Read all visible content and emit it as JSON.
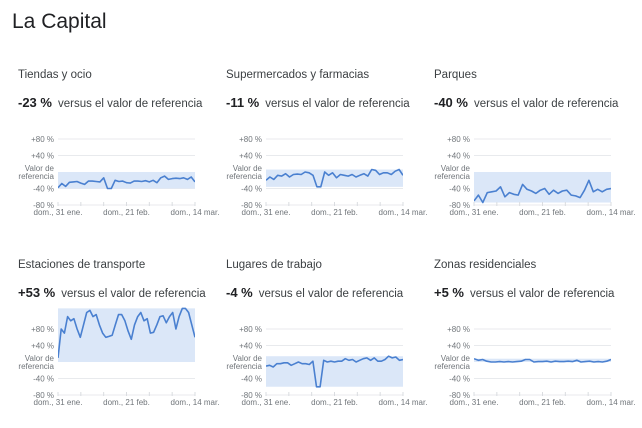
{
  "page": {
    "title": "La Capital"
  },
  "common": {
    "versus_label": "versus el valor de referencia",
    "y_ticks": [
      "+80 %",
      "+40 %",
      "Valor de",
      "referencia",
      "-40 %",
      "-80 %"
    ],
    "x_ticks": [
      "dom., 31 ene.",
      "dom., 21 feb.",
      "dom., 14 mar."
    ],
    "colors": {
      "line": "#4a80d0",
      "fill": "#dbe7f8",
      "grid": "#e8eaed",
      "text": "#70757a"
    }
  },
  "cards": [
    {
      "category": "Tiendas y ocio",
      "pct": "-23 %"
    },
    {
      "category": "Supermercados y farmacias",
      "pct": "-11 %"
    },
    {
      "category": "Parques",
      "pct": "-40 %"
    },
    {
      "category": "Estaciones de transporte",
      "pct": "+53 %"
    },
    {
      "category": "Lugares de trabajo",
      "pct": "-4 %"
    },
    {
      "category": "Zonas residenciales",
      "pct": "+5 %"
    }
  ],
  "chart_data": [
    {
      "type": "area",
      "title": "Tiendas y ocio",
      "subtitle": "-23 % versus el valor de referencia",
      "x_ticks": [
        "dom., 31 ene.",
        "dom., 21 feb.",
        "dom., 14 mar."
      ],
      "ylim": [
        -80,
        80
      ],
      "y_ticks": [
        "+80 %",
        "+40 %",
        "Valor de referencia",
        "-40 %",
        "-80 %"
      ],
      "values": [
        -38,
        -28,
        -35,
        -25,
        -24,
        -23,
        -27,
        -30,
        -22,
        -22,
        -23,
        -24,
        -14,
        -40,
        -40,
        -20,
        -23,
        -22,
        -26,
        -27,
        -22,
        -22,
        -23,
        -21,
        -24,
        -20,
        -26,
        -14,
        -10,
        -18,
        -16,
        -15,
        -16,
        -14,
        -18,
        -12,
        -24
      ]
    },
    {
      "type": "area",
      "title": "Supermercados y farmacias",
      "subtitle": "-11 % versus el valor de referencia",
      "x_ticks": [
        "dom., 31 ene.",
        "dom., 21 feb.",
        "dom., 14 mar."
      ],
      "ylim": [
        -80,
        80
      ],
      "y_ticks": [
        "+80 %",
        "+40 %",
        "Valor de referencia",
        "-40 %",
        "-80 %"
      ],
      "values": [
        -20,
        -12,
        -18,
        -8,
        -10,
        -4,
        -12,
        -6,
        -5,
        -6,
        0,
        -2,
        -8,
        -36,
        -36,
        0,
        -8,
        -2,
        -14,
        -6,
        -8,
        -10,
        -6,
        -12,
        -8,
        -4,
        -10,
        6,
        4,
        -6,
        -2,
        -2,
        -6,
        2,
        6,
        -8
      ]
    },
    {
      "type": "area",
      "title": "Parques",
      "subtitle": "-40 % versus el valor de referencia",
      "x_ticks": [
        "dom., 31 ene.",
        "dom., 21 feb.",
        "dom., 14 mar."
      ],
      "ylim": [
        -80,
        80
      ],
      "y_ticks": [
        "+80 %",
        "+40 %",
        "Valor de referencia",
        "-40 %",
        "-80 %"
      ],
      "values": [
        -70,
        -56,
        -74,
        -50,
        -48,
        -46,
        -36,
        -60,
        -50,
        -54,
        -56,
        -30,
        -42,
        -46,
        -52,
        -44,
        -40,
        -54,
        -44,
        -52,
        -46,
        -44,
        -56,
        -58,
        -62,
        -44,
        -20,
        -48,
        -42,
        -48,
        -42,
        -40
      ]
    },
    {
      "type": "area",
      "title": "Estaciones de transporte",
      "subtitle": "+53 % versus el valor de referencia",
      "x_ticks": [
        "dom., 31 ene.",
        "dom., 21 feb.",
        "dom., 14 mar."
      ],
      "ylim": [
        -80,
        80
      ],
      "y_ticks": [
        "+80 %",
        "+40 %",
        "Valor de referencia",
        "-40 %",
        "-80 %"
      ],
      "values": [
        10,
        80,
        70,
        110,
        100,
        105,
        80,
        60,
        90,
        120,
        125,
        110,
        115,
        90,
        70,
        60,
        62,
        65,
        90,
        115,
        115,
        100,
        75,
        55,
        90,
        110,
        120,
        100,
        105,
        70,
        72,
        90,
        110,
        112,
        95,
        110,
        120,
        80,
        110,
        130,
        130,
        120,
        90,
        60
      ]
    },
    {
      "type": "area",
      "title": "Lugares de trabajo",
      "subtitle": "-4 % versus el valor de referencia",
      "x_ticks": [
        "dom., 31 ene.",
        "dom., 21 feb.",
        "dom., 14 mar."
      ],
      "ylim": [
        -80,
        80
      ],
      "y_ticks": [
        "+80 %",
        "+40 %",
        "Valor de referencia",
        "-40 %",
        "-80 %"
      ],
      "values": [
        -10,
        -8,
        -12,
        -4,
        -4,
        -2,
        -2,
        -8,
        -4,
        0,
        -4,
        -4,
        -6,
        2,
        -60,
        -60,
        4,
        0,
        2,
        0,
        2,
        2,
        8,
        4,
        6,
        0,
        4,
        8,
        10,
        4,
        10,
        2,
        2,
        6,
        14,
        10,
        12,
        4,
        6
      ]
    },
    {
      "type": "area",
      "title": "Zonas residenciales",
      "subtitle": "+5 % versus el valor de referencia",
      "x_ticks": [
        "dom., 31 ene.",
        "dom., 21 feb.",
        "dom., 14 mar."
      ],
      "ylim": [
        -80,
        80
      ],
      "y_ticks": [
        "+80 %",
        "+40 %",
        "Valor de referencia",
        "-40 %",
        "-80 %"
      ],
      "values": [
        8,
        4,
        6,
        2,
        0,
        0,
        1,
        0,
        1,
        0,
        1,
        2,
        6,
        6,
        0,
        1,
        1,
        2,
        0,
        2,
        1,
        1,
        2,
        1,
        4,
        0,
        1,
        2,
        0,
        1,
        0,
        2,
        6
      ]
    }
  ]
}
